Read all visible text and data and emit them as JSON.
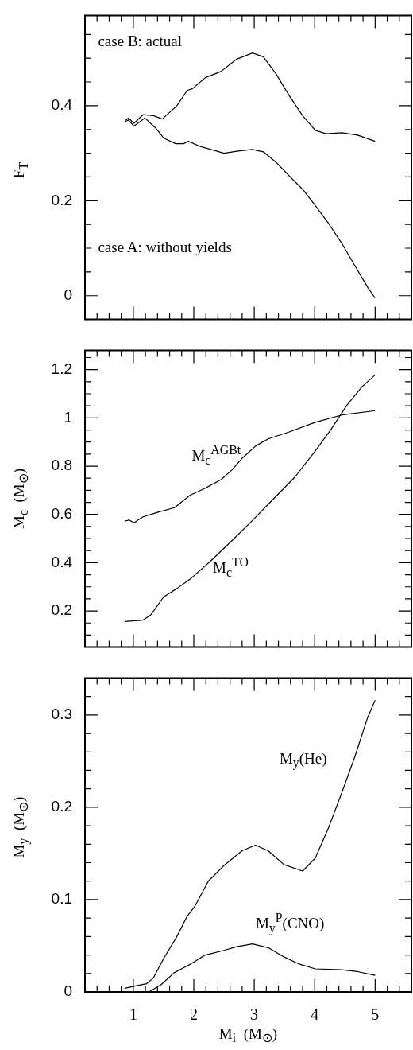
{
  "chart_data": [
    {
      "type": "line",
      "ylabel": "F$_{T}$",
      "xlim": [
        0.2,
        5.6
      ],
      "ylim": [
        -0.05,
        0.59
      ],
      "tick_labels": "y",
      "xticks": [
        {
          "value": 0.4,
          "label": null
        },
        {
          "value": 0.6,
          "label": null
        },
        {
          "value": 0.8,
          "label": null
        },
        1,
        {
          "value": 1.2,
          "label": null
        },
        {
          "value": 1.4,
          "label": null
        },
        {
          "value": 1.6,
          "label": null
        },
        {
          "value": 1.8,
          "label": null
        },
        2,
        {
          "value": 2.2,
          "label": null
        },
        {
          "value": 2.4,
          "label": null
        },
        {
          "value": 2.6,
          "label": null
        },
        {
          "value": 2.8,
          "label": null
        },
        3,
        {
          "value": 3.2,
          "label": null
        },
        {
          "value": 3.4,
          "label": null
        },
        {
          "value": 3.6,
          "label": null
        },
        {
          "value": 3.8,
          "label": null
        },
        4,
        {
          "value": 4.2,
          "label": null
        },
        {
          "value": 4.4,
          "label": null
        },
        {
          "value": 4.6,
          "label": null
        },
        {
          "value": 4.8,
          "label": null
        },
        5,
        {
          "value": 5.2,
          "label": null
        },
        {
          "value": 5.4,
          "label": null
        }
      ],
      "yticks": [
        0,
        {
          "value": 0.05,
          "label": null
        },
        {
          "value": 0.1,
          "label": null
        },
        {
          "value": 0.15,
          "label": null
        },
        0.2,
        {
          "value": 0.25,
          "label": null
        },
        {
          "value": 0.3,
          "label": null
        },
        {
          "value": 0.35,
          "label": null
        },
        0.4,
        {
          "value": 0.45,
          "label": null
        },
        {
          "value": 0.5,
          "label": null
        },
        {
          "value": 0.55,
          "label": null
        }
      ],
      "series": [
        {
          "name": "case B: actual",
          "color": "#000000",
          "x": [
            0.86,
            0.92,
            1.01,
            1.16,
            1.33,
            1.48,
            1.59,
            1.72,
            1.89,
            1.98,
            2.19,
            2.45,
            2.71,
            2.97,
            3.15,
            3.36,
            3.58,
            3.8,
            4.01,
            4.19,
            4.45,
            4.71,
            5.0
          ],
          "values": [
            0.369,
            0.374,
            0.363,
            0.381,
            0.379,
            0.372,
            0.385,
            0.4,
            0.432,
            0.436,
            0.459,
            0.472,
            0.498,
            0.511,
            0.503,
            0.467,
            0.421,
            0.379,
            0.348,
            0.341,
            0.343,
            0.338,
            0.325
          ]
        },
        {
          "color": "#000000",
          "x": [
            0.86,
            0.92,
            1.01,
            1.19,
            1.37,
            1.5,
            1.7,
            1.83,
            1.91,
            2.11,
            2.5,
            2.71,
            2.97,
            3.15,
            3.36,
            3.58,
            3.8,
            4.01,
            4.23,
            4.45,
            4.66,
            4.88,
            5.0
          ],
          "values": [
            0.366,
            0.37,
            0.357,
            0.374,
            0.353,
            0.332,
            0.32,
            0.32,
            0.325,
            0.314,
            0.3,
            0.304,
            0.308,
            0.303,
            0.281,
            0.252,
            0.224,
            0.19,
            0.152,
            0.11,
            0.064,
            0.017,
            -0.005
          ]
        }
      ],
      "annotations": [
        "case A: without yields"
      ]
    },
    {
      "type": "line",
      "ylabel": "M$_{c}$  (M$_{⊙}$)",
      "xlim": [
        0.2,
        5.6
      ],
      "ylim": [
        0.05,
        1.28
      ],
      "tick_labels": "y",
      "xticks": [
        {
          "value": 0.4,
          "label": null
        },
        {
          "value": 0.6,
          "label": null
        },
        {
          "value": 0.8,
          "label": null
        },
        1,
        {
          "value": 1.2,
          "label": null
        },
        {
          "value": 1.4,
          "label": null
        },
        {
          "value": 1.6,
          "label": null
        },
        {
          "value": 1.8,
          "label": null
        },
        2,
        {
          "value": 2.2,
          "label": null
        },
        {
          "value": 2.4,
          "label": null
        },
        {
          "value": 2.6,
          "label": null
        },
        {
          "value": 2.8,
          "label": null
        },
        3,
        {
          "value": 3.2,
          "label": null
        },
        {
          "value": 3.4,
          "label": null
        },
        {
          "value": 3.6,
          "label": null
        },
        {
          "value": 3.8,
          "label": null
        },
        4,
        {
          "value": 4.2,
          "label": null
        },
        {
          "value": 4.4,
          "label": null
        },
        {
          "value": 4.6,
          "label": null
        },
        {
          "value": 4.8,
          "label": null
        },
        5,
        {
          "value": 5.2,
          "label": null
        },
        {
          "value": 5.4,
          "label": null
        }
      ],
      "yticks": [
        {
          "value": 0.1,
          "label": null
        },
        {
          "value": 0.15,
          "label": null
        },
        0.2,
        {
          "value": 0.25,
          "label": null
        },
        {
          "value": 0.3,
          "label": null
        },
        {
          "value": 0.35,
          "label": null
        },
        0.4,
        {
          "value": 0.45,
          "label": null
        },
        {
          "value": 0.5,
          "label": null
        },
        {
          "value": 0.55,
          "label": null
        },
        0.6,
        {
          "value": 0.65,
          "label": null
        },
        {
          "value": 0.7,
          "label": null
        },
        {
          "value": 0.75,
          "label": null
        },
        0.8,
        {
          "value": 0.85,
          "label": null
        },
        {
          "value": 0.9,
          "label": null
        },
        {
          "value": 0.95,
          "label": null
        },
        1,
        {
          "value": 1.05,
          "label": null
        },
        {
          "value": 1.1,
          "label": null
        },
        {
          "value": 1.15,
          "label": null
        },
        1.2,
        {
          "value": 1.25,
          "label": null
        }
      ],
      "series": [
        {
          "name": "M$_{c}$$^{AGBt}$",
          "color": "#000000",
          "x": [
            0.86,
            0.93,
            1.01,
            1.16,
            1.42,
            1.68,
            1.94,
            2.19,
            2.45,
            2.63,
            2.8,
            3.02,
            3.23,
            3.58,
            4.01,
            4.45,
            5.0
          ],
          "values": [
            0.572,
            0.577,
            0.565,
            0.59,
            0.61,
            0.628,
            0.68,
            0.709,
            0.744,
            0.784,
            0.833,
            0.883,
            0.913,
            0.942,
            0.982,
            1.012,
            1.03
          ]
        },
        {
          "name": "M$_{c}$$^{TO}$",
          "color": "#000000",
          "x": [
            0.86,
            1.16,
            1.29,
            1.5,
            1.72,
            1.94,
            2.28,
            2.63,
            2.97,
            3.32,
            3.67,
            4.01,
            4.27,
            4.53,
            4.79,
            5.0
          ],
          "values": [
            0.156,
            0.162,
            0.184,
            0.258,
            0.293,
            0.332,
            0.407,
            0.491,
            0.575,
            0.665,
            0.754,
            0.863,
            0.952,
            1.052,
            1.131,
            1.178
          ]
        }
      ]
    },
    {
      "type": "line",
      "xlabel": "M$_{i}$  (M$_{⊙}$)",
      "ylabel": "M$_{y}$  (M$_{⊙}$)",
      "xlim": [
        0.2,
        5.6
      ],
      "ylim": [
        0,
        0.34
      ],
      "xticks": [
        {
          "value": 0.4,
          "label": null
        },
        {
          "value": 0.6,
          "label": null
        },
        {
          "value": 0.8,
          "label": null
        },
        1,
        {
          "value": 1.2,
          "label": null
        },
        {
          "value": 1.4,
          "label": null
        },
        {
          "value": 1.6,
          "label": null
        },
        {
          "value": 1.8,
          "label": null
        },
        2,
        {
          "value": 2.2,
          "label": null
        },
        {
          "value": 2.4,
          "label": null
        },
        {
          "value": 2.6,
          "label": null
        },
        {
          "value": 2.8,
          "label": null
        },
        3,
        {
          "value": 3.2,
          "label": null
        },
        {
          "value": 3.4,
          "label": null
        },
        {
          "value": 3.6,
          "label": null
        },
        {
          "value": 3.8,
          "label": null
        },
        4,
        {
          "value": 4.2,
          "label": null
        },
        {
          "value": 4.4,
          "label": null
        },
        {
          "value": 4.6,
          "label": null
        },
        {
          "value": 4.8,
          "label": null
        },
        5,
        {
          "value": 5.2,
          "label": null
        },
        {
          "value": 5.4,
          "label": null
        }
      ],
      "yticks": [
        0,
        {
          "value": 0.02,
          "label": null
        },
        {
          "value": 0.04,
          "label": null
        },
        {
          "value": 0.06,
          "label": null
        },
        {
          "value": 0.08,
          "label": null
        },
        0.1,
        {
          "value": 0.12,
          "label": null
        },
        {
          "value": 0.14,
          "label": null
        },
        {
          "value": 0.16,
          "label": null
        },
        {
          "value": 0.18,
          "label": null
        },
        0.2,
        {
          "value": 0.22,
          "label": null
        },
        {
          "value": 0.24,
          "label": null
        },
        {
          "value": 0.26,
          "label": null
        },
        {
          "value": 0.28,
          "label": null
        },
        0.3,
        {
          "value": 0.32,
          "label": null
        }
      ],
      "series": [
        {
          "name": "M$_{y}$(He)",
          "color": "#000000",
          "x": [
            0.86,
            1.07,
            1.22,
            1.33,
            1.5,
            1.72,
            1.89,
            2.02,
            2.24,
            2.5,
            2.8,
            3.02,
            3.23,
            3.49,
            3.8,
            4.01,
            4.23,
            4.45,
            4.66,
            4.88,
            5.0
          ],
          "values": [
            0.004,
            0.007,
            0.009,
            0.015,
            0.036,
            0.06,
            0.082,
            0.093,
            0.12,
            0.137,
            0.153,
            0.159,
            0.153,
            0.138,
            0.131,
            0.145,
            0.178,
            0.216,
            0.254,
            0.298,
            0.316
          ]
        },
        {
          "name": "M$_{y}$$^{P}$(CNO)",
          "color": "#000000",
          "x": [
            1.26,
            1.46,
            1.68,
            1.94,
            2.19,
            2.5,
            2.71,
            2.97,
            3.23,
            3.49,
            3.75,
            4.01,
            4.45,
            4.71,
            5.0
          ],
          "values": [
            0,
            0.008,
            0.021,
            0.03,
            0.04,
            0.045,
            0.049,
            0.052,
            0.048,
            0.038,
            0.03,
            0.025,
            0.024,
            0.022,
            0.018
          ]
        }
      ]
    }
  ]
}
